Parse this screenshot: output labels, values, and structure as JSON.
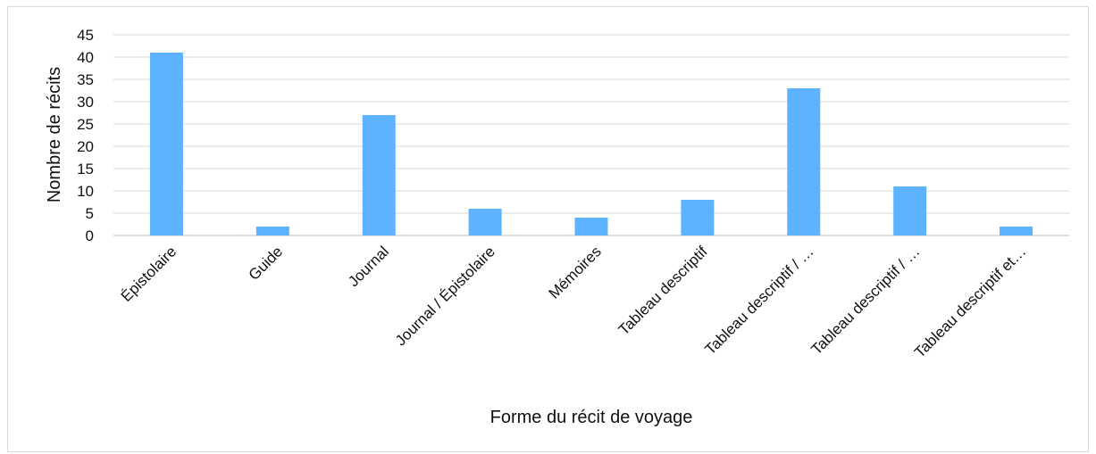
{
  "chart_data": {
    "type": "bar",
    "categories": [
      "Épistolaire",
      "Guide",
      "Journal",
      "Journal / Épistolaire",
      "Mémoires",
      "Tableau descriptif",
      "Tableau descriptif / …",
      "Tableau descriptif / …",
      "Tableau descriptif et…"
    ],
    "values": [
      41,
      2,
      27,
      6,
      4,
      8,
      33,
      11,
      2
    ],
    "title": "",
    "xlabel": "Forme du récit de voyage",
    "ylabel": "Nombre de récits",
    "ylim": [
      0,
      45
    ],
    "yticks": [
      0,
      5,
      10,
      15,
      20,
      25,
      30,
      35,
      40,
      45
    ],
    "grid": true,
    "legend": "none",
    "bar_color": "#5db3ff"
  }
}
